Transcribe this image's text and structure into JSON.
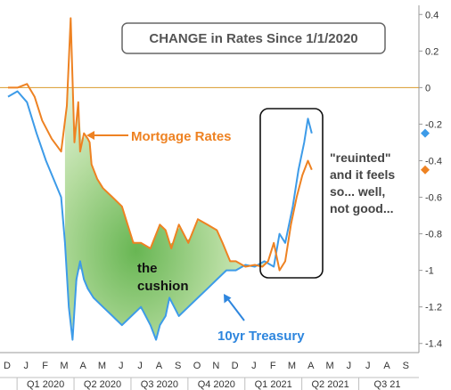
{
  "chart_data": {
    "type": "line",
    "title": "CHANGE in Rates Since 1/1/2020",
    "ylim": [
      -1.45,
      0.45
    ],
    "y_ticks": [
      "0.4",
      "0.2",
      "0",
      "-0.2",
      "-0.4",
      "-0.6",
      "-0.8",
      "-1",
      "-1.2",
      "-1.4"
    ],
    "y_tick_values": [
      0.4,
      0.2,
      0,
      -0.2,
      -0.4,
      -0.6,
      -0.8,
      -1,
      -1.2,
      -1.4
    ],
    "x_month_labels": [
      "D",
      "J",
      "F",
      "M",
      "A",
      "M",
      "J",
      "J",
      "A",
      "S",
      "O",
      "N",
      "D",
      "J",
      "F",
      "M",
      "A",
      "M",
      "J",
      "J",
      "A",
      "S"
    ],
    "x_quarter_labels": [
      "Q1 2020",
      "Q2 2020",
      "Q3 2020",
      "Q4 2020",
      "Q1 2021",
      "Q2 2021",
      "Q3 21"
    ],
    "xlim": [
      0,
      21.8
    ],
    "grid": false,
    "colors": {
      "treasury": "#3d9be8",
      "mortgage": "#ee8222",
      "zero_line": "#d99a2b",
      "fill_dark": "#68b653",
      "fill_light": "#eaf6e2",
      "annotation_orange": "#ee8222",
      "annotation_blue": "#2e86de",
      "box_title_border": "#666666"
    },
    "series": [
      {
        "name": "Mortgage Rates",
        "x": [
          0.0,
          0.5,
          1.0,
          1.4,
          1.8,
          2.3,
          2.8,
          3.1,
          3.3,
          3.5,
          3.7,
          3.8,
          4.0,
          4.2,
          4.3,
          4.4,
          4.7,
          5.0,
          5.5,
          6.0,
          6.3,
          6.6,
          7.0,
          7.5,
          8.0,
          8.3,
          8.6,
          9.0,
          9.5,
          10.0,
          10.5,
          11.0,
          11.3,
          11.7,
          12.0,
          12.5,
          13.0,
          13.4,
          13.7,
          14.0,
          14.3,
          14.6,
          14.9,
          15.2,
          15.5,
          15.8,
          16.0
        ],
        "values": [
          0.0,
          0.0,
          0.02,
          -0.05,
          -0.18,
          -0.28,
          -0.35,
          -0.1,
          0.38,
          -0.3,
          -0.08,
          -0.35,
          -0.25,
          -0.28,
          -0.3,
          -0.42,
          -0.5,
          -0.55,
          -0.6,
          -0.65,
          -0.75,
          -0.85,
          -0.85,
          -0.88,
          -0.75,
          -0.78,
          -0.88,
          -0.75,
          -0.85,
          -0.72,
          -0.75,
          -0.78,
          -0.85,
          -0.95,
          -0.95,
          -0.98,
          -0.97,
          -0.98,
          -0.95,
          -0.85,
          -1.0,
          -0.95,
          -0.75,
          -0.6,
          -0.48,
          -0.4,
          -0.45
        ]
      },
      {
        "name": "10yr Treasury",
        "x": [
          0.0,
          0.5,
          1.0,
          1.5,
          2.0,
          2.4,
          2.8,
          3.0,
          3.2,
          3.4,
          3.6,
          3.8,
          4.0,
          4.2,
          4.5,
          5.0,
          5.5,
          6.0,
          6.5,
          7.0,
          7.5,
          7.8,
          8.0,
          8.3,
          8.5,
          9.0,
          9.5,
          10.0,
          10.5,
          11.0,
          11.5,
          12.0,
          12.5,
          13.0,
          13.5,
          14.0,
          14.3,
          14.6,
          15.0,
          15.3,
          15.6,
          15.8,
          16.0
        ],
        "values": [
          -0.05,
          -0.02,
          -0.08,
          -0.25,
          -0.4,
          -0.5,
          -0.6,
          -0.85,
          -1.2,
          -1.38,
          -1.05,
          -0.95,
          -1.05,
          -1.1,
          -1.15,
          -1.2,
          -1.25,
          -1.3,
          -1.25,
          -1.2,
          -1.3,
          -1.38,
          -1.3,
          -1.25,
          -1.15,
          -1.25,
          -1.2,
          -1.15,
          -1.1,
          -1.05,
          -1.0,
          -1.0,
          -0.97,
          -0.98,
          -0.95,
          -0.98,
          -0.8,
          -0.85,
          -0.65,
          -0.45,
          -0.3,
          -0.17,
          -0.25
        ]
      }
    ],
    "end_markers": [
      {
        "series": "10yr Treasury",
        "value": -0.25
      },
      {
        "series": "Mortgage Rates",
        "value": -0.45
      }
    ],
    "annotations": {
      "mortgage_label": "Mortgage Rates",
      "treasury_label": "10yr Treasury",
      "cushion_line1": "the",
      "cushion_line2": "cushion",
      "reunited_lines": [
        "\"reuinted\"",
        "and it feels",
        "so... well,",
        "not good..."
      ]
    }
  }
}
